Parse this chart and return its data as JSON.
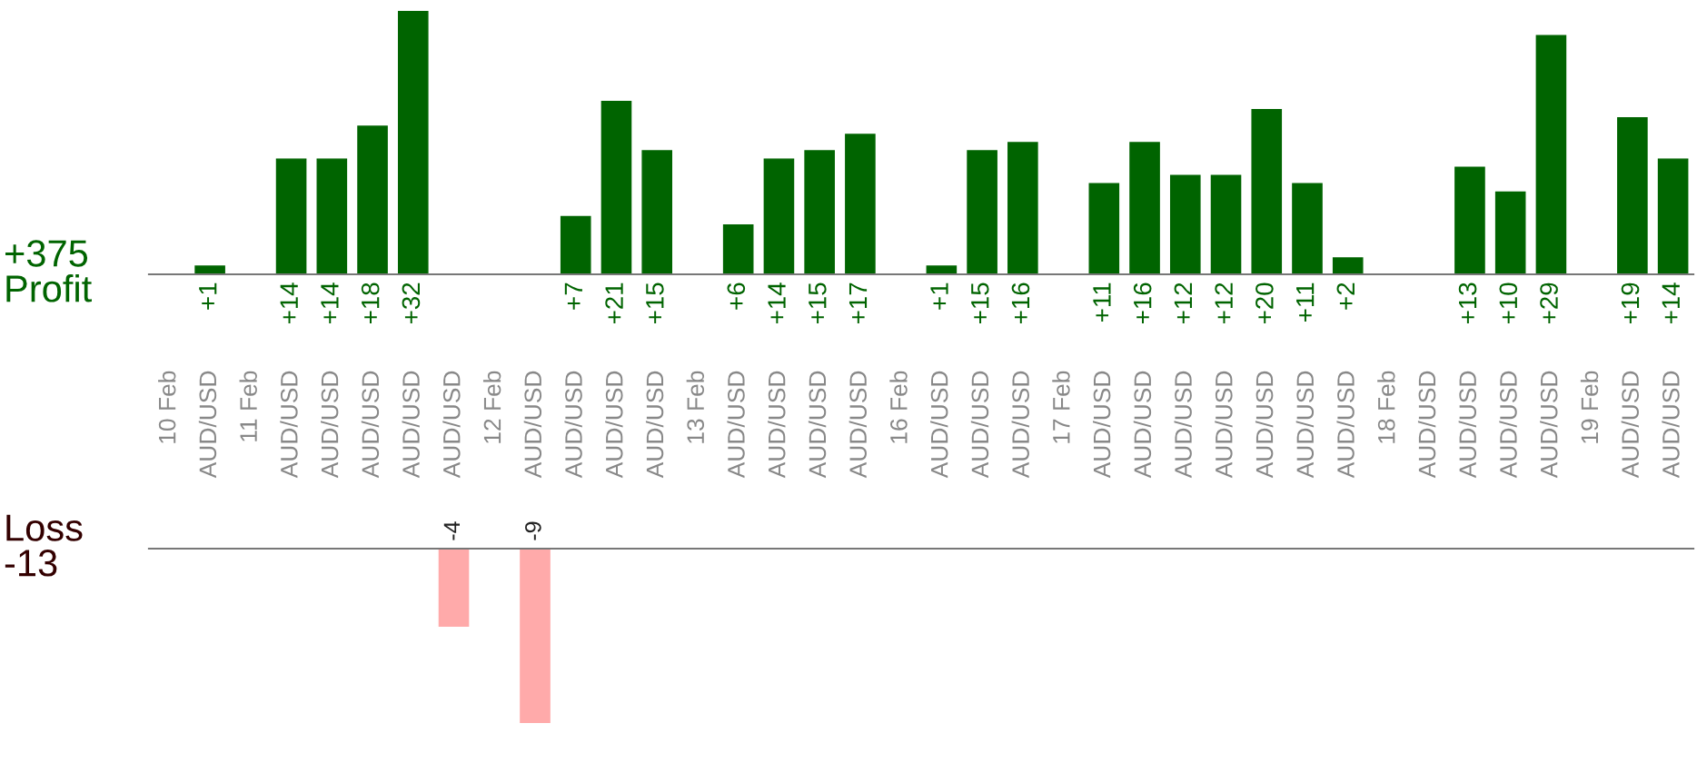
{
  "chart_data": [
    {
      "type": "bar",
      "categories": [
        "10 Feb",
        "AUD/USD",
        "11 Feb",
        "AUD/USD",
        "AUD/USD",
        "AUD/USD",
        "AUD/USD",
        "AUD/USD",
        "12 Feb",
        "AUD/USD",
        "AUD/USD",
        "AUD/USD",
        "AUD/USD",
        "13 Feb",
        "AUD/USD",
        "AUD/USD",
        "AUD/USD",
        "AUD/USD",
        "16 Feb",
        "AUD/USD",
        "AUD/USD",
        "AUD/USD",
        "17 Feb",
        "AUD/USD",
        "AUD/USD",
        "AUD/USD",
        "AUD/USD",
        "AUD/USD",
        "AUD/USD",
        "AUD/USD",
        "18 Feb",
        "AUD/USD",
        "AUD/USD",
        "AUD/USD",
        "AUD/USD",
        "19 Feb",
        "AUD/USD",
        "AUD/USD"
      ],
      "values": [
        null,
        1,
        null,
        14,
        14,
        18,
        32,
        null,
        null,
        null,
        7,
        21,
        15,
        null,
        6,
        14,
        15,
        17,
        null,
        1,
        15,
        16,
        null,
        11,
        16,
        12,
        12,
        20,
        11,
        2,
        null,
        null,
        13,
        10,
        29,
        null,
        19,
        14
      ],
      "value_labels": [
        null,
        "+1",
        null,
        "+14",
        "+14",
        "+18",
        "+32",
        null,
        null,
        null,
        "+7",
        "+21",
        "+15",
        null,
        "+6",
        "+14",
        "+15",
        "+17",
        null,
        "+1",
        "+15",
        "+16",
        null,
        "+11",
        "+16",
        "+12",
        "+12",
        "+20",
        "+11",
        "+2",
        null,
        null,
        "+13",
        "+10",
        "+29",
        null,
        "+19",
        "+14"
      ],
      "color": "#006400",
      "ylim": [
        0,
        32
      ],
      "tick_labels": "x",
      "annotations": [
        "+375",
        "Profit"
      ]
    },
    {
      "type": "bar",
      "categories": [
        null,
        null,
        null,
        null,
        null,
        null,
        null,
        null,
        null,
        null,
        null,
        null,
        null,
        null,
        null,
        null,
        null,
        null,
        null,
        null,
        null,
        null,
        null,
        null,
        null,
        null,
        null,
        null,
        null,
        null,
        null,
        null,
        null,
        null,
        null,
        null,
        null,
        null
      ],
      "values": [
        null,
        null,
        null,
        null,
        null,
        null,
        null,
        -4,
        null,
        -9,
        null,
        null,
        null,
        null,
        null,
        null,
        null,
        null,
        null,
        null,
        null,
        null,
        null,
        null,
        null,
        null,
        null,
        null,
        null,
        null,
        null,
        null,
        null,
        null,
        null,
        null,
        null,
        null
      ],
      "value_labels": [
        null,
        null,
        null,
        null,
        null,
        null,
        null,
        "-4",
        null,
        "-9",
        null,
        null,
        null,
        null,
        null,
        null,
        null,
        null,
        null,
        null,
        null,
        null,
        null,
        null,
        null,
        null,
        null,
        null,
        null,
        null,
        null,
        null,
        null,
        null,
        null,
        null,
        null,
        null
      ],
      "color": "#ffaaaa",
      "ylim": [
        -9,
        0
      ],
      "tick_labels": false,
      "annotations": [
        "Loss",
        "-13"
      ]
    }
  ]
}
